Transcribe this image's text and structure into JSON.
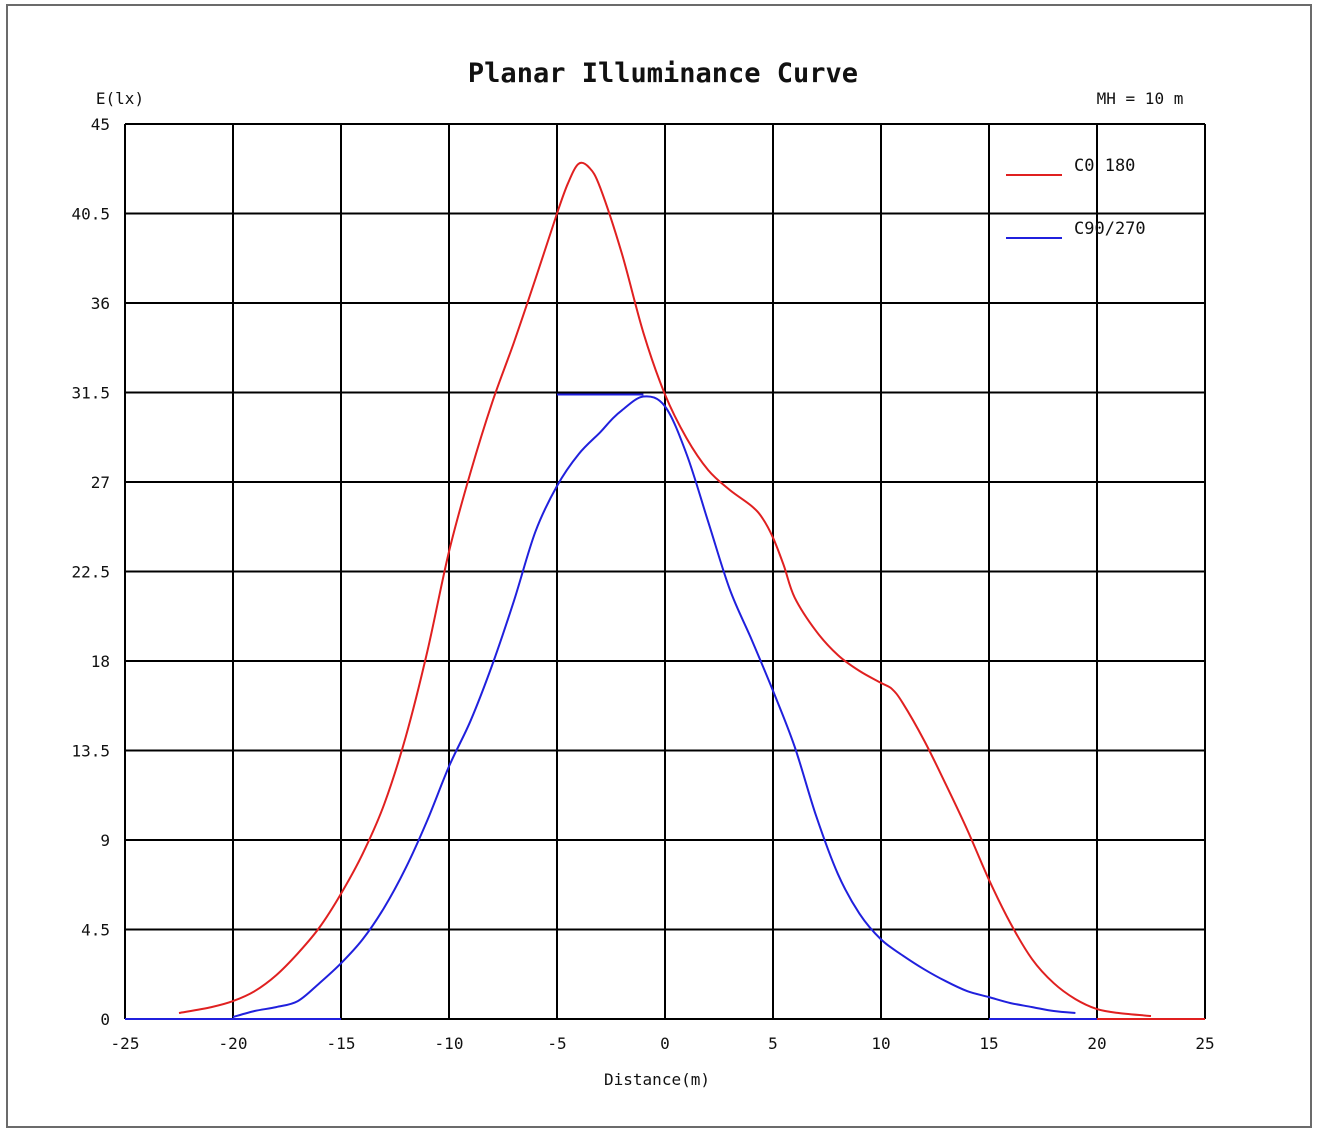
{
  "chart_data": {
    "type": "line",
    "title": "Planar Illuminance Curve",
    "annotation": "MH = 10 m",
    "xlabel": "Distance(m)",
    "ylabel": "E(lx)",
    "xlim": [
      -25,
      25
    ],
    "ylim": [
      0,
      45
    ],
    "xticks": [
      "-25",
      "-20",
      "-15",
      "-10",
      "-5",
      "0",
      "5",
      "10",
      "15",
      "20",
      "25"
    ],
    "yticks": [
      "0",
      "4.5",
      "9",
      "13.5",
      "18",
      "22.5",
      "27",
      "31.5",
      "36",
      "40.5",
      "45"
    ],
    "grid": true,
    "legend_position": "top-right",
    "series": [
      {
        "name": "C0 180",
        "color": "#e02020",
        "points": [
          [
            -22.5,
            0.3
          ],
          [
            -21,
            0.6
          ],
          [
            -20,
            0.9
          ],
          [
            -19,
            1.4
          ],
          [
            -18,
            2.2
          ],
          [
            -17,
            3.3
          ],
          [
            -16,
            4.6
          ],
          [
            -15,
            6.3
          ],
          [
            -14,
            8.3
          ],
          [
            -13,
            10.8
          ],
          [
            -12,
            14.2
          ],
          [
            -11,
            18.5
          ],
          [
            -10,
            23.5
          ],
          [
            -9,
            27.5
          ],
          [
            -8,
            31.0
          ],
          [
            -7,
            34.0
          ],
          [
            -6,
            37.2
          ],
          [
            -5,
            40.5
          ],
          [
            -4.5,
            42.0
          ],
          [
            -4,
            43.0
          ],
          [
            -3.5,
            42.8
          ],
          [
            -3,
            41.8
          ],
          [
            -2,
            38.5
          ],
          [
            -1,
            34.5
          ],
          [
            0,
            31.4
          ],
          [
            1,
            29.2
          ],
          [
            2,
            27.6
          ],
          [
            3,
            26.6
          ],
          [
            4,
            25.8
          ],
          [
            4.5,
            25.2
          ],
          [
            5,
            24.2
          ],
          [
            5.5,
            22.8
          ],
          [
            6,
            21.2
          ],
          [
            7,
            19.5
          ],
          [
            8,
            18.3
          ],
          [
            9,
            17.5
          ],
          [
            10,
            16.9
          ],
          [
            10.5,
            16.6
          ],
          [
            11,
            15.9
          ],
          [
            12,
            14.0
          ],
          [
            13,
            11.8
          ],
          [
            14,
            9.5
          ],
          [
            15,
            7.0
          ],
          [
            16,
            4.8
          ],
          [
            17,
            3.0
          ],
          [
            18,
            1.8
          ],
          [
            19,
            1.0
          ],
          [
            20,
            0.5
          ],
          [
            21,
            0.3
          ],
          [
            22.5,
            0.15
          ]
        ]
      },
      {
        "name": "C90/270",
        "color": "#2020dd",
        "points": [
          [
            -20,
            0.1
          ],
          [
            -19,
            0.4
          ],
          [
            -18,
            0.6
          ],
          [
            -17,
            0.9
          ],
          [
            -16,
            1.8
          ],
          [
            -15,
            2.8
          ],
          [
            -14,
            4.0
          ],
          [
            -13,
            5.6
          ],
          [
            -12,
            7.6
          ],
          [
            -11,
            10.0
          ],
          [
            -10,
            12.7
          ],
          [
            -9,
            15.0
          ],
          [
            -8,
            17.8
          ],
          [
            -7,
            21.0
          ],
          [
            -6,
            24.5
          ],
          [
            -5,
            26.8
          ],
          [
            -4,
            28.4
          ],
          [
            -3,
            29.5
          ],
          [
            -2.5,
            30.1
          ],
          [
            -2,
            30.6
          ],
          [
            -1,
            31.3
          ],
          [
            0,
            30.8
          ],
          [
            1,
            28.4
          ],
          [
            2,
            25.0
          ],
          [
            3,
            21.6
          ],
          [
            4,
            19.1
          ],
          [
            5,
            16.5
          ],
          [
            6,
            13.7
          ],
          [
            7,
            10.2
          ],
          [
            8,
            7.3
          ],
          [
            9,
            5.3
          ],
          [
            10,
            4.0
          ],
          [
            11,
            3.2
          ],
          [
            12,
            2.5
          ],
          [
            13,
            1.9
          ],
          [
            14,
            1.4
          ],
          [
            15,
            1.1
          ],
          [
            16,
            0.8
          ],
          [
            17,
            0.6
          ],
          [
            18,
            0.4
          ],
          [
            19,
            0.3
          ]
        ]
      }
    ],
    "baseline_segments": [
      {
        "color": "#2020dd",
        "x0": -25,
        "x1": -20,
        "y": 0
      },
      {
        "color": "#2020dd",
        "x0": -20,
        "x1": -15,
        "y": 0
      },
      {
        "color": "#2020dd",
        "x0": 15,
        "x1": 20,
        "y": 0
      },
      {
        "color": "#e02020",
        "x0": 20,
        "x1": 25,
        "y": 0
      },
      {
        "color": "#2020dd",
        "x0": -5,
        "x1": -1,
        "y": 31.4
      }
    ]
  }
}
